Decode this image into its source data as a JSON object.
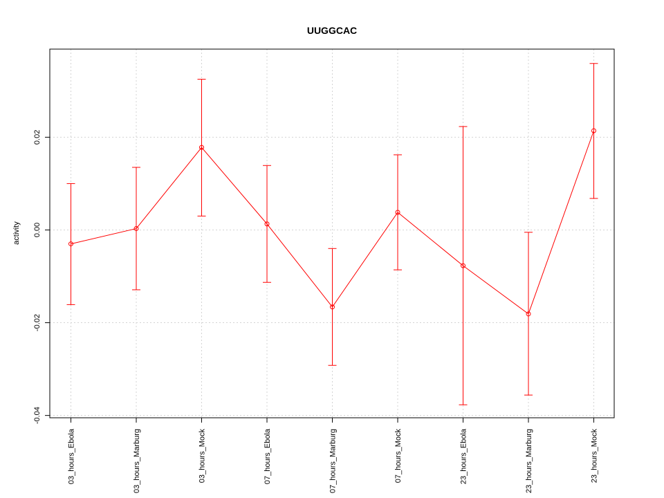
{
  "chart_data": {
    "type": "line",
    "title": "UUGGCAC",
    "xlabel": "",
    "ylabel": "activity",
    "categories": [
      "03_hours_Ebola",
      "03_hours_Marburg",
      "03_hours_Mock",
      "07_hours_Ebola",
      "07_hours_Marburg",
      "07_hours_Mock",
      "23_hours_Ebola",
      "23_hours_Marburg",
      "23_hours_Mock"
    ],
    "values": [
      -0.003,
      0.0003,
      0.0178,
      0.0013,
      -0.0166,
      0.0038,
      -0.0077,
      -0.0181,
      0.0214
    ],
    "error_upper": [
      0.01,
      0.0135,
      0.0325,
      0.0139,
      -0.004,
      0.0162,
      0.0223,
      -0.0005,
      0.0359
    ],
    "error_lower": [
      -0.0161,
      -0.0129,
      0.003,
      -0.0113,
      -0.0292,
      -0.0086,
      -0.0377,
      -0.0356,
      0.0068
    ],
    "yticks": [
      -0.04,
      -0.02,
      0.0,
      0.02
    ],
    "ytick_labels": [
      "-0.04",
      "-0.02",
      "0.00",
      "0.02"
    ],
    "ylim": [
      -0.0405,
      0.039
    ],
    "grid": true,
    "color": "#ff0000"
  }
}
